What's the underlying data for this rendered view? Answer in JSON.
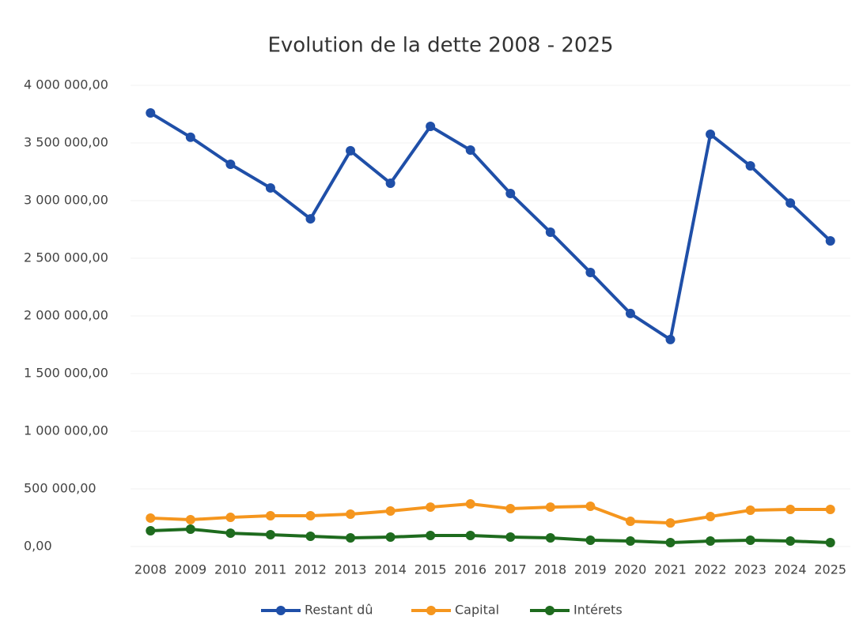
{
  "chart_data": {
    "type": "line",
    "title": "Evolution de la dette 2008 - 2025",
    "categories": [
      "2008",
      "2009",
      "2010",
      "2011",
      "2012",
      "2013",
      "2014",
      "2015",
      "2016",
      "2017",
      "2018",
      "2019",
      "2020",
      "2021",
      "2022",
      "2023",
      "2024",
      "2025"
    ],
    "series": [
      {
        "name": "Restant dû",
        "color": "#1f4fa8",
        "values": [
          3760000,
          3550000,
          3315000,
          3110000,
          2842000,
          3432000,
          3151000,
          3644000,
          3438000,
          3062000,
          2726000,
          2377000,
          2021000,
          1795000,
          3575000,
          3301000,
          2979000,
          2651000
        ]
      },
      {
        "name": "Capital",
        "color": "#f5961e",
        "values": [
          247000,
          233000,
          253000,
          267000,
          267000,
          281000,
          308000,
          342000,
          370000,
          329000,
          342000,
          349000,
          219000,
          205000,
          260000,
          315000,
          322000,
          322000
        ]
      },
      {
        "name": "Intérets",
        "color": "#1e6b1e",
        "values": [
          137000,
          151000,
          116000,
          103000,
          89000,
          75000,
          82000,
          96000,
          96000,
          82000,
          75000,
          55000,
          48000,
          34000,
          48000,
          55000,
          48000,
          34000
        ]
      }
    ],
    "ylim": [
      0,
      4000000
    ],
    "yticks": [
      {
        "value": 0,
        "label": "0,00"
      },
      {
        "value": 500000,
        "label": "500 000,00"
      },
      {
        "value": 1000000,
        "label": "1 000 000,00"
      },
      {
        "value": 1500000,
        "label": "1 500 000,00"
      },
      {
        "value": 2000000,
        "label": "2 000 000,00"
      },
      {
        "value": 2500000,
        "label": "2 500 000,00"
      },
      {
        "value": 3000000,
        "label": "3 000 000,00"
      },
      {
        "value": 3500000,
        "label": "3 500 000,00"
      },
      {
        "value": 4000000,
        "label": "4 000 000,00"
      }
    ],
    "grid": true,
    "legend": "bottom"
  }
}
